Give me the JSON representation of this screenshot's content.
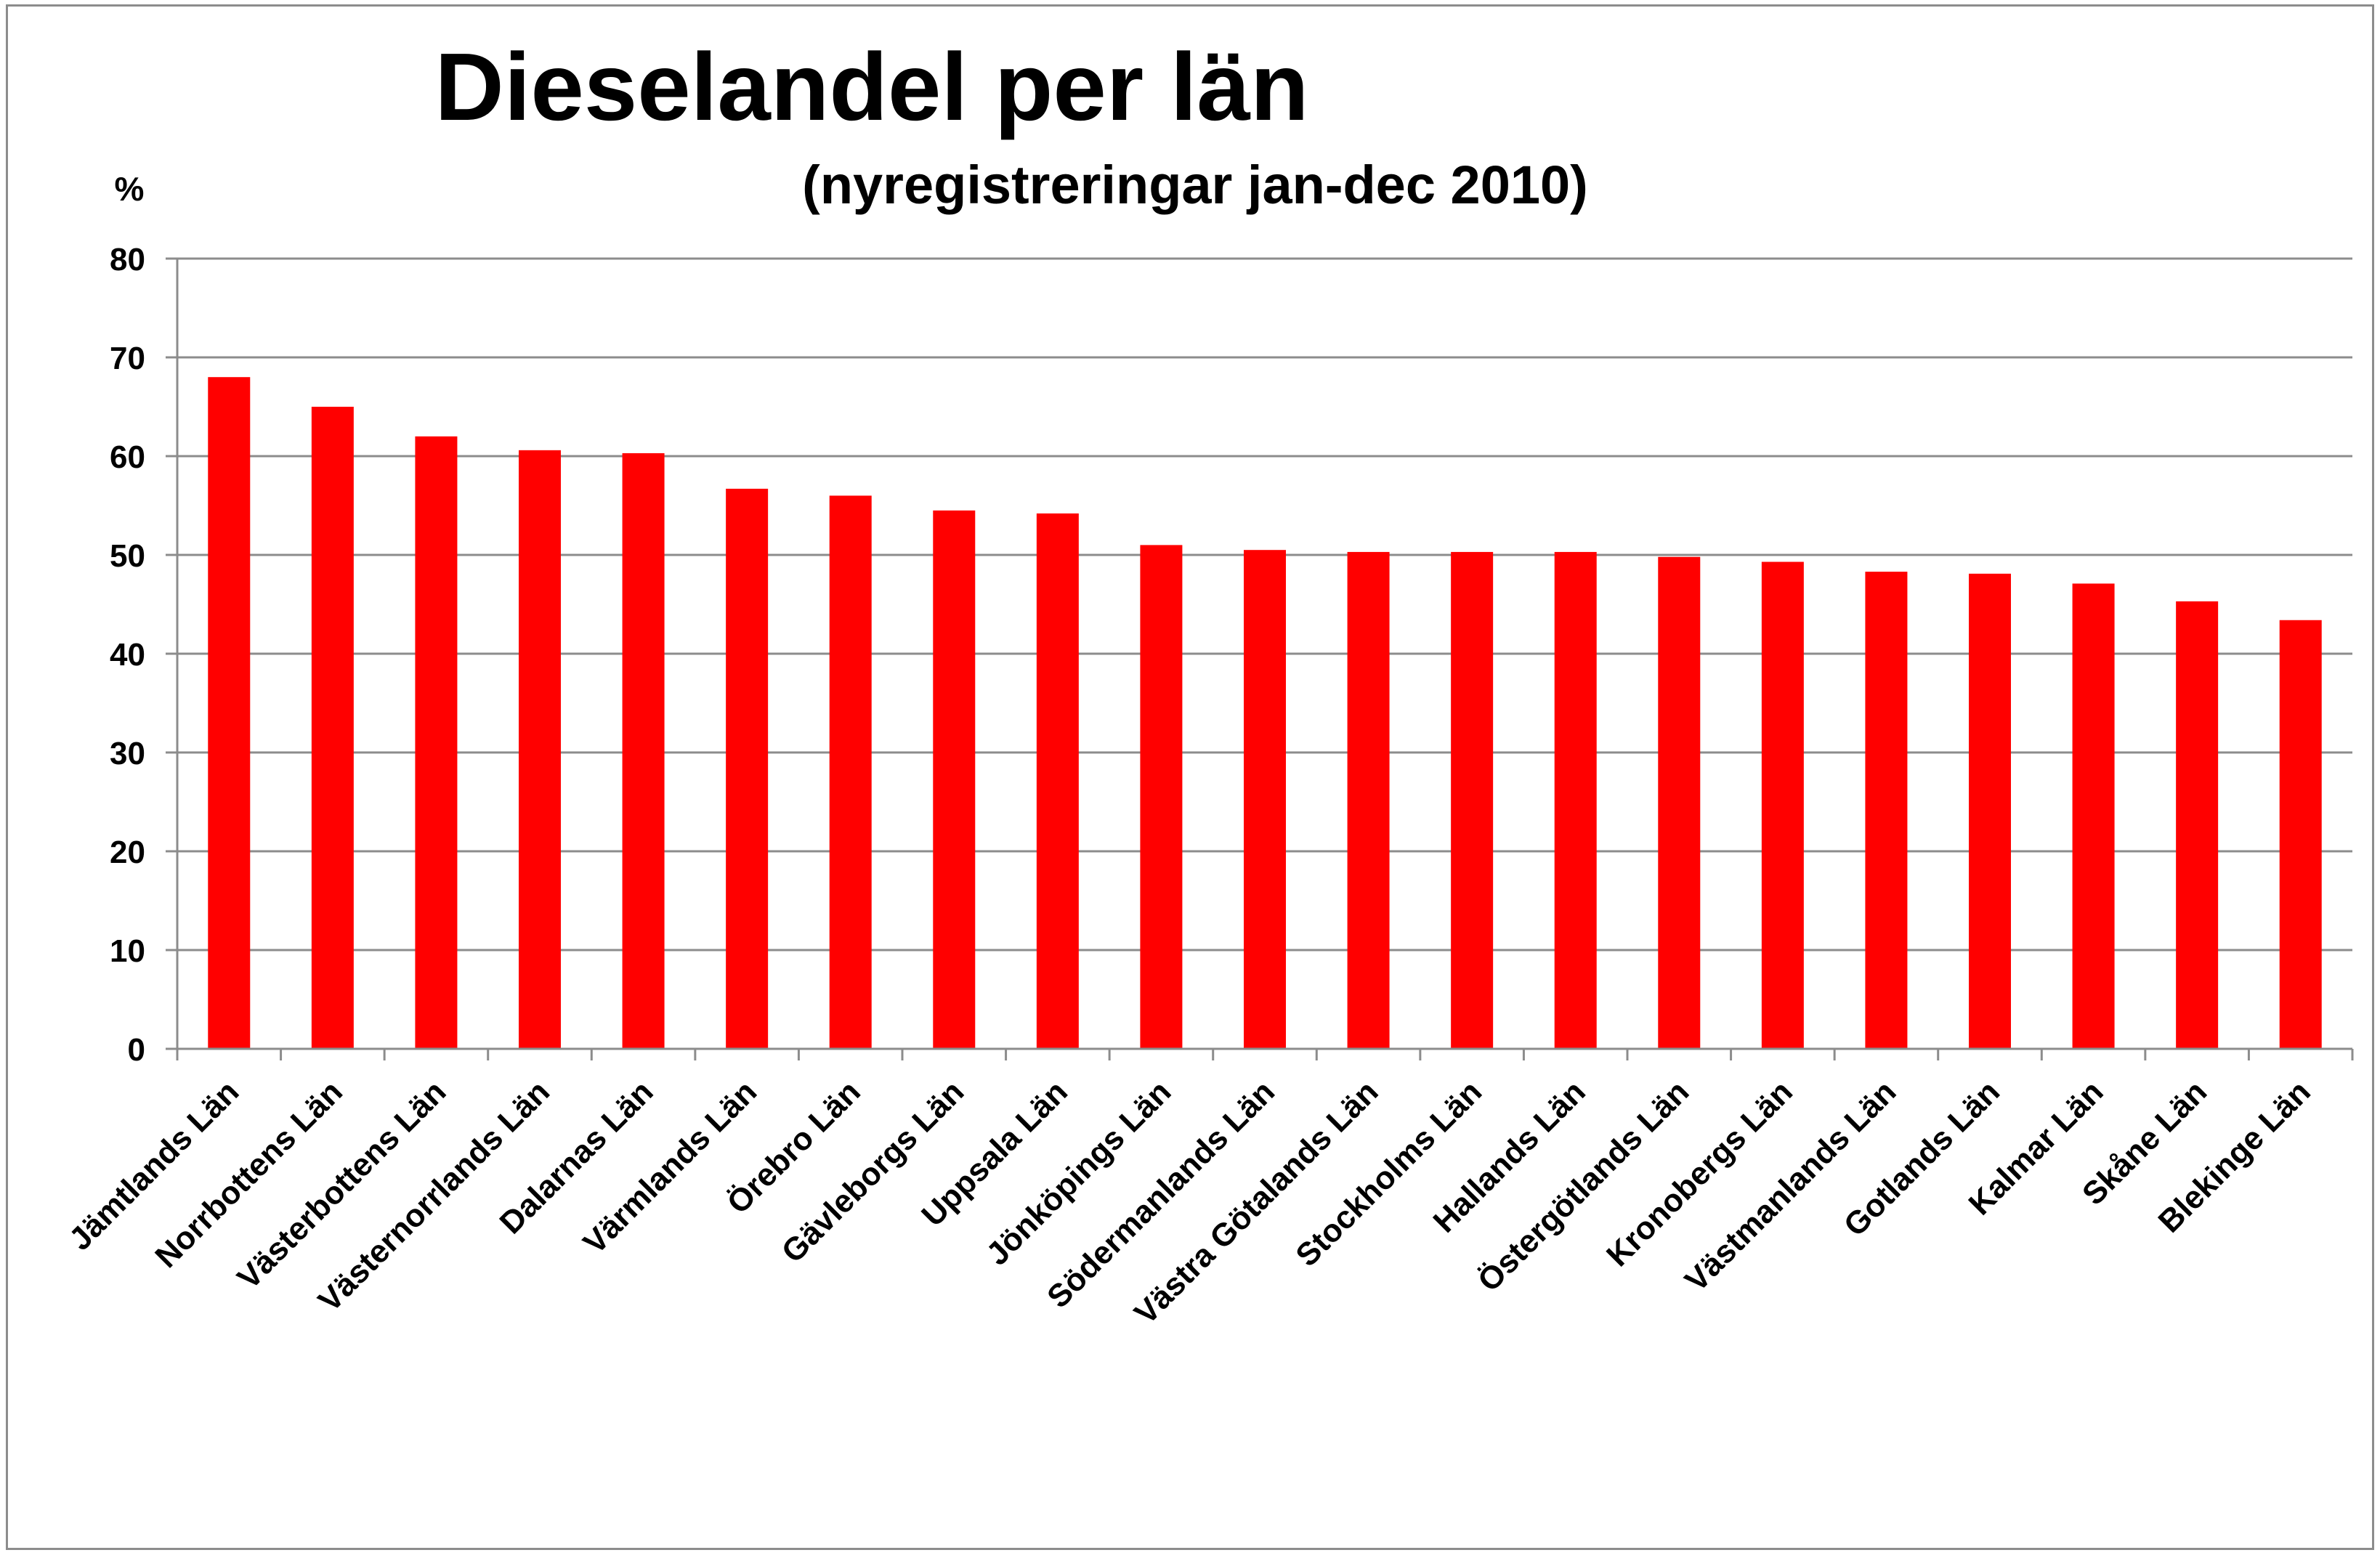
{
  "chart_data": {
    "type": "bar",
    "title": "Dieselandel per län",
    "subtitle": "(nyregistreringar jan-dec 2010)",
    "ylabel": "%",
    "xlabel": "",
    "ylim": [
      0,
      80
    ],
    "yticks": [
      0,
      10,
      20,
      30,
      40,
      50,
      60,
      70,
      80
    ],
    "grid": true,
    "legend": "none",
    "bar_color": "#ff0000",
    "categories": [
      "Jämtlands Län",
      "Norrbottens Län",
      "Västerbottens Län",
      "Västernorrlands Län",
      "Dalarnas Län",
      "Värmlands Län",
      "Örebro Län",
      "Gävleborgs Län",
      "Uppsala Län",
      "Jönköpings Län",
      "Södermanlands Län",
      "Västra Götalands Län",
      "Stockholms Län",
      "Hallands Län",
      "Östergötlands Län",
      "Kronobergs Län",
      "Västmanlands Län",
      "Gotlands Län",
      "Kalmar Län",
      "Skåne Län",
      "Blekinge Län"
    ],
    "values": [
      68,
      65,
      62,
      60.6,
      60.3,
      56.7,
      56,
      54.5,
      54.2,
      51,
      50.5,
      50.3,
      50.3,
      50.3,
      49.8,
      49.3,
      48.3,
      48.1,
      47.1,
      45.3,
      43.4
    ]
  }
}
